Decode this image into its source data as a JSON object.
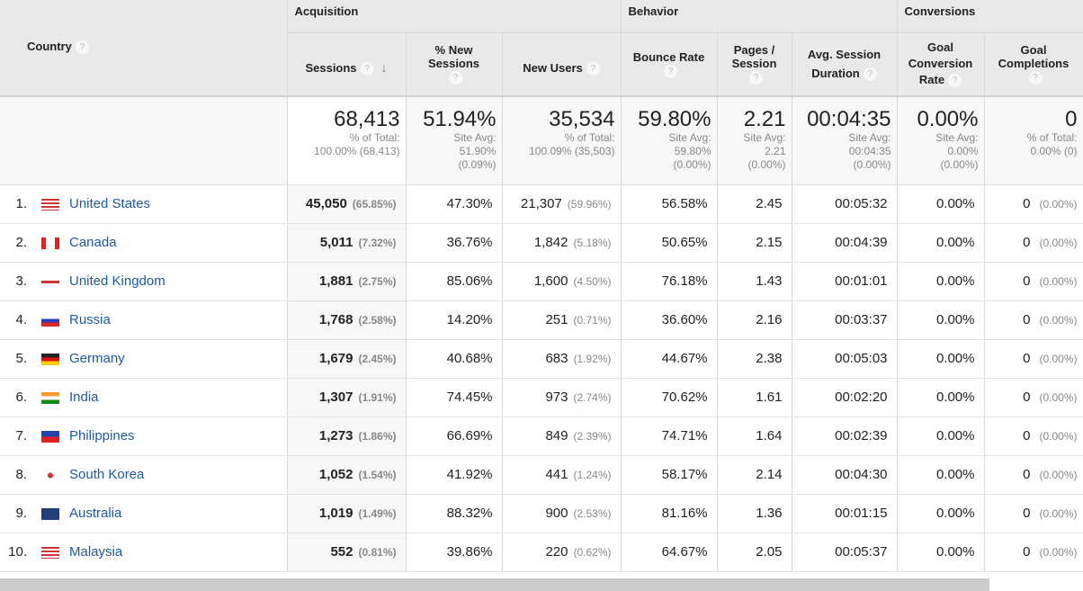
{
  "groups": {
    "acquisition": "Acquisition",
    "behavior": "Behavior",
    "conversions": "Conversions"
  },
  "columns": {
    "country": "Country",
    "sessions": "Sessions",
    "new_sessions": "% New Sessions",
    "new_users": "New Users",
    "bounce": "Bounce Rate",
    "pages": "Pages / Session",
    "duration": "Avg. Session Duration",
    "goal_rate": "Goal Conversion Rate",
    "goal_comp": "Goal Completions",
    "help": "?",
    "sort_arrow": "↓"
  },
  "summary": {
    "sessions": {
      "value": "68,413",
      "l1": "% of Total:",
      "l2": "100.00% (68,413)"
    },
    "new_sessions": {
      "value": "51.94%",
      "l1": "Site Avg:",
      "l2": "51.90%",
      "l3": "(0.09%)"
    },
    "new_users": {
      "value": "35,534",
      "l1": "% of Total:",
      "l2": "100.09% (35,503)"
    },
    "bounce": {
      "value": "59.80%",
      "l1": "Site Avg:",
      "l2": "59.80%",
      "l3": "(0.00%)"
    },
    "pages": {
      "value": "2.21",
      "l1": "Site Avg:",
      "l2": "2.21",
      "l3": "(0.00%)"
    },
    "duration": {
      "value": "00:04:35",
      "l1": "Site Avg:",
      "l2": "00:04:35",
      "l3": "(0.00%)"
    },
    "goal_rate": {
      "value": "0.00%",
      "l1": "Site Avg:",
      "l2": "0.00%",
      "l3": "(0.00%)"
    },
    "goal_comp": {
      "value": "0",
      "l1": "% of Total:",
      "l2": "0.00% (0)"
    }
  },
  "rows": [
    {
      "idx": "1.",
      "flag": "us",
      "country": "United States",
      "sessions": "45,050",
      "sessions_pct": "(65.85%)",
      "new_sessions": "47.30%",
      "new_users": "21,307",
      "new_users_pct": "(59.96%)",
      "bounce": "56.58%",
      "pages": "2.45",
      "duration": "00:05:32",
      "goal_rate": "0.00%",
      "goal_comp": "0",
      "goal_comp_pct": "(0.00%)"
    },
    {
      "idx": "2.",
      "flag": "ca",
      "country": "Canada",
      "sessions": "5,011",
      "sessions_pct": "(7.32%)",
      "new_sessions": "36.76%",
      "new_users": "1,842",
      "new_users_pct": "(5.18%)",
      "bounce": "50.65%",
      "pages": "2.15",
      "duration": "00:04:39",
      "goal_rate": "0.00%",
      "goal_comp": "0",
      "goal_comp_pct": "(0.00%)"
    },
    {
      "idx": "3.",
      "flag": "gb",
      "country": "United Kingdom",
      "sessions": "1,881",
      "sessions_pct": "(2.75%)",
      "new_sessions": "85.06%",
      "new_users": "1,600",
      "new_users_pct": "(4.50%)",
      "bounce": "76.18%",
      "pages": "1.43",
      "duration": "00:01:01",
      "goal_rate": "0.00%",
      "goal_comp": "0",
      "goal_comp_pct": "(0.00%)"
    },
    {
      "idx": "4.",
      "flag": "ru",
      "country": "Russia",
      "sessions": "1,768",
      "sessions_pct": "(2.58%)",
      "new_sessions": "14.20%",
      "new_users": "251",
      "new_users_pct": "(0.71%)",
      "bounce": "36.60%",
      "pages": "2.16",
      "duration": "00:03:37",
      "goal_rate": "0.00%",
      "goal_comp": "0",
      "goal_comp_pct": "(0.00%)"
    },
    {
      "idx": "5.",
      "flag": "de",
      "country": "Germany",
      "sessions": "1,679",
      "sessions_pct": "(2.45%)",
      "new_sessions": "40.68%",
      "new_users": "683",
      "new_users_pct": "(1.92%)",
      "bounce": "44.67%",
      "pages": "2.38",
      "duration": "00:05:03",
      "goal_rate": "0.00%",
      "goal_comp": "0",
      "goal_comp_pct": "(0.00%)"
    },
    {
      "idx": "6.",
      "flag": "in",
      "country": "India",
      "sessions": "1,307",
      "sessions_pct": "(1.91%)",
      "new_sessions": "74.45%",
      "new_users": "973",
      "new_users_pct": "(2.74%)",
      "bounce": "70.62%",
      "pages": "1.61",
      "duration": "00:02:20",
      "goal_rate": "0.00%",
      "goal_comp": "0",
      "goal_comp_pct": "(0.00%)"
    },
    {
      "idx": "7.",
      "flag": "ph",
      "country": "Philippines",
      "sessions": "1,273",
      "sessions_pct": "(1.86%)",
      "new_sessions": "66.69%",
      "new_users": "849",
      "new_users_pct": "(2.39%)",
      "bounce": "74.71%",
      "pages": "1.64",
      "duration": "00:02:39",
      "goal_rate": "0.00%",
      "goal_comp": "0",
      "goal_comp_pct": "(0.00%)"
    },
    {
      "idx": "8.",
      "flag": "kr",
      "country": "South Korea",
      "sessions": "1,052",
      "sessions_pct": "(1.54%)",
      "new_sessions": "41.92%",
      "new_users": "441",
      "new_users_pct": "(1.24%)",
      "bounce": "58.17%",
      "pages": "2.14",
      "duration": "00:04:30",
      "goal_rate": "0.00%",
      "goal_comp": "0",
      "goal_comp_pct": "(0.00%)"
    },
    {
      "idx": "9.",
      "flag": "au",
      "country": "Australia",
      "sessions": "1,019",
      "sessions_pct": "(1.49%)",
      "new_sessions": "88.32%",
      "new_users": "900",
      "new_users_pct": "(2.53%)",
      "bounce": "81.16%",
      "pages": "1.36",
      "duration": "00:01:15",
      "goal_rate": "0.00%",
      "goal_comp": "0",
      "goal_comp_pct": "(0.00%)"
    },
    {
      "idx": "10.",
      "flag": "my",
      "country": "Malaysia",
      "sessions": "552",
      "sessions_pct": "(0.81%)",
      "new_sessions": "39.86%",
      "new_users": "220",
      "new_users_pct": "(0.62%)",
      "bounce": "64.67%",
      "pages": "2.05",
      "duration": "00:05:37",
      "goal_rate": "0.00%",
      "goal_comp": "0",
      "goal_comp_pct": "(0.00%)"
    }
  ]
}
